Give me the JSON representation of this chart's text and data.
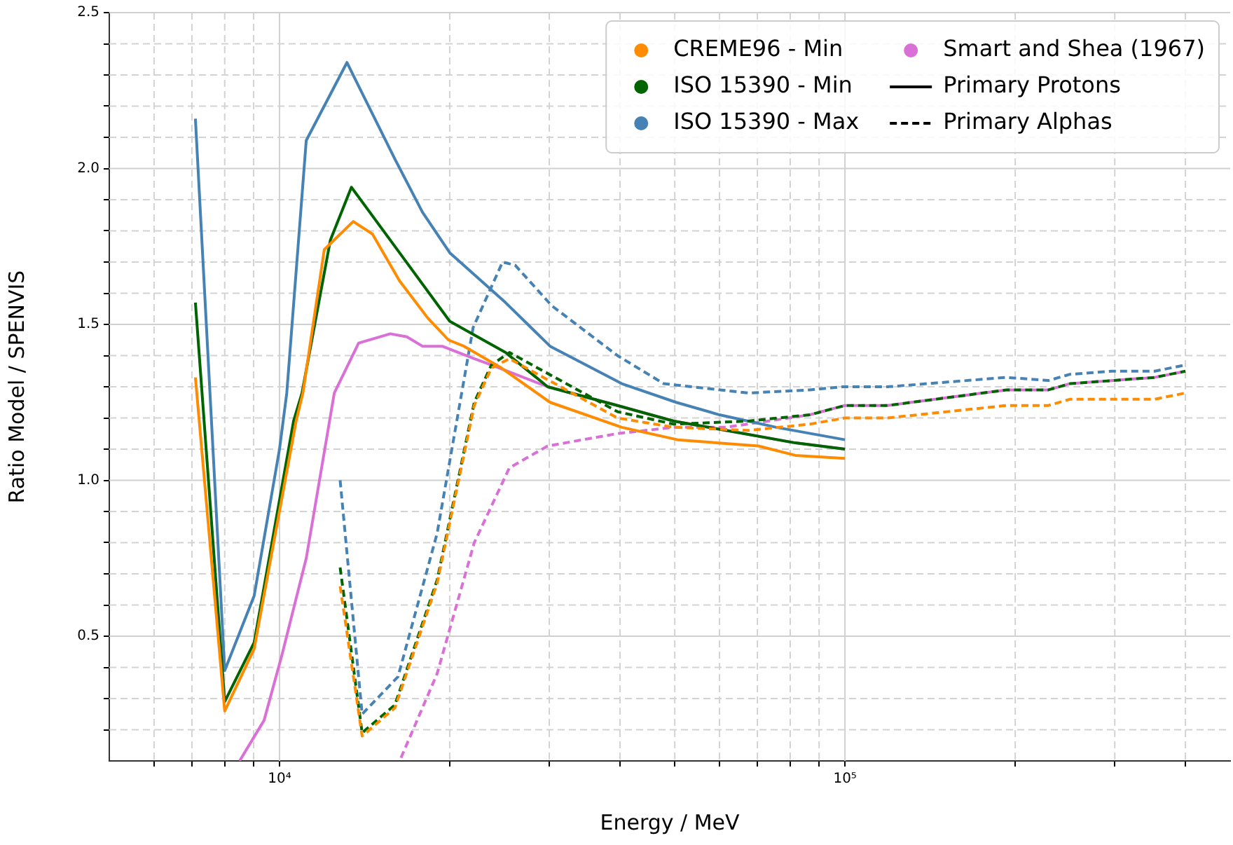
{
  "chart_data": {
    "type": "line",
    "xlabel": "Energy / MeV",
    "ylabel": "Ratio Model / SPENVIS",
    "log": "x",
    "grid": true,
    "legend": "top right",
    "marker": "none",
    "xlim": [
      5000,
      480000
    ],
    "ylim": [
      0.1,
      2.5
    ],
    "xticks": [
      {
        "value": 6000,
        "label": null
      },
      {
        "value": 7000,
        "label": null
      },
      {
        "value": 8000,
        "label": null
      },
      {
        "value": 9000,
        "label": null
      },
      {
        "value": 10000,
        "label": "10⁴"
      },
      {
        "value": 20000,
        "label": null
      },
      {
        "value": 30000,
        "label": null
      },
      {
        "value": 40000,
        "label": null
      },
      {
        "value": 50000,
        "label": null
      },
      {
        "value": 60000,
        "label": null
      },
      {
        "value": 70000,
        "label": null
      },
      {
        "value": 80000,
        "label": null
      },
      {
        "value": 90000,
        "label": null
      },
      {
        "value": 100000,
        "label": "10⁵"
      },
      {
        "value": 200000,
        "label": null
      },
      {
        "value": 300000,
        "label": null
      },
      {
        "value": 400000,
        "label": null
      }
    ],
    "yticks": [
      {
        "value": 0.2,
        "label": null
      },
      {
        "value": 0.3,
        "label": null
      },
      {
        "value": 0.4,
        "label": null
      },
      0.5,
      {
        "value": 0.6,
        "label": null
      },
      {
        "value": 0.7,
        "label": null
      },
      {
        "value": 0.8,
        "label": null
      },
      {
        "value": 0.9,
        "label": null
      },
      {
        "value": 1,
        "label": "1.0"
      },
      {
        "value": 1.1,
        "label": null
      },
      {
        "value": 1.2,
        "label": null
      },
      {
        "value": 1.3,
        "label": null
      },
      {
        "value": 1.4,
        "label": null
      },
      1.5,
      {
        "value": 1.6,
        "label": null
      },
      {
        "value": 1.7,
        "label": null
      },
      {
        "value": 1.8,
        "label": null
      },
      {
        "value": 1.9,
        "label": null
      },
      {
        "value": 2,
        "label": "2.0"
      },
      {
        "value": 2.1,
        "label": null
      },
      {
        "value": 2.2,
        "label": null
      },
      {
        "value": 2.3,
        "label": null
      },
      {
        "value": 2.4,
        "label": null
      },
      2.5
    ],
    "series": [
      {
        "name": "CREME96 - Min",
        "color": "#ff8c00",
        "line_style": "solid",
        "x": [
          7100,
          8000,
          9020,
          10700,
          11000,
          12000,
          13500,
          14600,
          16300,
          18300,
          19900,
          21200,
          24700,
          30100,
          40300,
          50600,
          70300,
          81700,
          100000
        ],
        "values": [
          1.33,
          0.26,
          0.46,
          1.19,
          1.28,
          1.74,
          1.83,
          1.79,
          1.64,
          1.52,
          1.45,
          1.43,
          1.36,
          1.25,
          1.17,
          1.13,
          1.11,
          1.08,
          1.07
        ]
      },
      {
        "color": "#ff8c00",
        "line_style": "dashed",
        "x": [
          12800,
          14000,
          16000,
          19000,
          22100,
          23700,
          25500,
          29300,
          39600,
          49800,
          67500,
          86600,
          100000,
          119000,
          193000,
          229000,
          250000,
          297000,
          353000,
          400000
        ],
        "values": [
          0.66,
          0.18,
          0.27,
          0.67,
          1.24,
          1.36,
          1.39,
          1.33,
          1.2,
          1.17,
          1.16,
          1.18,
          1.2,
          1.2,
          1.24,
          1.24,
          1.26,
          1.26,
          1.26,
          1.28
        ]
      },
      {
        "name": "ISO 15390 - Min",
        "color": "#006400",
        "line_style": "solid",
        "x": [
          7100,
          8000,
          9020,
          10590,
          10960,
          12300,
          13400,
          16300,
          20000,
          25100,
          29800,
          39600,
          49800,
          61600,
          81700,
          100000
        ],
        "values": [
          1.57,
          0.29,
          0.48,
          1.19,
          1.28,
          1.77,
          1.94,
          1.73,
          1.51,
          1.41,
          1.3,
          1.24,
          1.19,
          1.16,
          1.12,
          1.1
        ]
      },
      {
        "color": "#006400",
        "line_style": "dashed",
        "x": [
          12800,
          14000,
          16000,
          19000,
          22100,
          23700,
          25500,
          29300,
          39600,
          49800,
          67500,
          86600,
          100000,
          119000,
          193000,
          229000,
          250000,
          297000,
          353000,
          400000
        ],
        "values": [
          0.72,
          0.19,
          0.28,
          0.68,
          1.25,
          1.37,
          1.41,
          1.35,
          1.22,
          1.18,
          1.19,
          1.21,
          1.24,
          1.24,
          1.29,
          1.29,
          1.31,
          1.32,
          1.33,
          1.35
        ]
      },
      {
        "name": "ISO 15390 - Max",
        "color": "#4682b4",
        "line_style": "solid",
        "x": [
          7100,
          8000,
          9020,
          10000,
          10300,
          11150,
          13160,
          16000,
          17900,
          20000,
          25100,
          30100,
          40300,
          50300,
          60000,
          75600,
          100000
        ],
        "values": [
          2.16,
          0.39,
          0.63,
          1.1,
          1.28,
          2.09,
          2.34,
          2.03,
          1.86,
          1.73,
          1.57,
          1.43,
          1.31,
          1.25,
          1.21,
          1.17,
          1.13
        ]
      },
      {
        "color": "#4682b4",
        "line_style": "dashed",
        "x": [
          12800,
          14000,
          16200,
          19000,
          22000,
          24800,
          26100,
          30300,
          39600,
          47800,
          67500,
          86600,
          99000,
          119000,
          193000,
          229000,
          250000,
          297000,
          353000,
          400000
        ],
        "values": [
          1.0,
          0.25,
          0.37,
          0.83,
          1.49,
          1.7,
          1.69,
          1.56,
          1.4,
          1.31,
          1.28,
          1.29,
          1.3,
          1.3,
          1.33,
          1.32,
          1.34,
          1.35,
          1.35,
          1.37
        ]
      },
      {
        "name": "Smart and Shea (1967)",
        "color": "#da70d6",
        "line_style": "solid",
        "x": [
          8500,
          9390,
          10100,
          11150,
          12500,
          13800,
          15700,
          16800,
          17900,
          19400,
          22100,
          23700,
          29800,
          39600,
          49800,
          61600,
          81700,
          100000
        ],
        "values": [
          0.1,
          0.23,
          0.44,
          0.75,
          1.28,
          1.44,
          1.47,
          1.46,
          1.43,
          1.43,
          1.39,
          1.37,
          1.3,
          1.24,
          1.19,
          1.16,
          1.12,
          1.1
        ]
      },
      {
        "color": "#da70d6",
        "line_style": "dashed",
        "x": [
          16400,
          19000,
          22100,
          25500,
          29800,
          39600,
          49800,
          61600,
          86600,
          100000,
          119000,
          193000,
          229000,
          250000,
          297000,
          353000,
          400000
        ],
        "values": [
          0.11,
          0.38,
          0.8,
          1.04,
          1.11,
          1.15,
          1.17,
          1.17,
          1.21,
          1.24,
          1.24,
          1.29,
          1.29,
          1.31,
          1.32,
          1.33,
          1.35
        ]
      },
      {
        "name": "Primary Protons",
        "color": "#000000",
        "line_style": "solid"
      },
      {
        "name": "Primary Alphas",
        "color": "#000000",
        "line_style": "dashed"
      }
    ]
  }
}
